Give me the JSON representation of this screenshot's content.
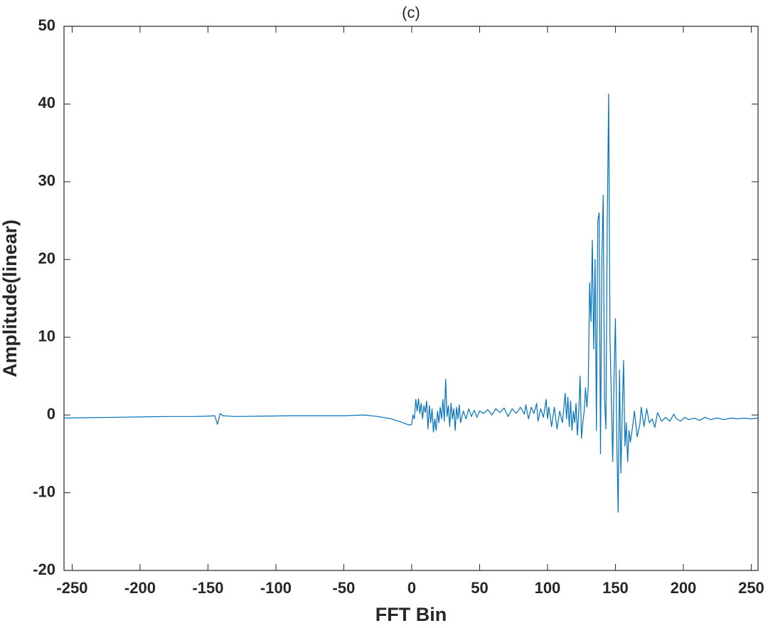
{
  "chart_data": {
    "type": "line",
    "title": "(c)",
    "x_label": "FFT Bin",
    "y_label": "Amplitude(linear)",
    "color": "#0072bd",
    "xlim": [
      -256,
      255
    ],
    "ylim": [
      -20,
      50
    ],
    "xticks": [
      -250,
      -200,
      -150,
      -100,
      -50,
      0,
      50,
      100,
      150,
      200,
      250
    ],
    "yticks": [
      -20,
      -10,
      0,
      10,
      20,
      30,
      40,
      50
    ],
    "x": [
      -256,
      -240,
      -220,
      -200,
      -180,
      -160,
      -150,
      -145,
      -143,
      -141,
      -139,
      -130,
      -110,
      -90,
      -70,
      -50,
      -35,
      -25,
      -15,
      -8,
      -2,
      0,
      1,
      2,
      3,
      4,
      5,
      6,
      7,
      8,
      9,
      10,
      11,
      12,
      13,
      14,
      15,
      16,
      17,
      18,
      19,
      20,
      21,
      22,
      23,
      24,
      25,
      26,
      27,
      28,
      29,
      30,
      31,
      32,
      33,
      34,
      35,
      36,
      38,
      40,
      42,
      44,
      46,
      48,
      50,
      53,
      56,
      59,
      62,
      65,
      68,
      71,
      74,
      77,
      80,
      83,
      84,
      86,
      88,
      90,
      92,
      93,
      95,
      97,
      99,
      100,
      101,
      103,
      105,
      107,
      109,
      111,
      113,
      114,
      115,
      116,
      117,
      118,
      119,
      120,
      121,
      122,
      123,
      124,
      125,
      126,
      127,
      128,
      129,
      130,
      131,
      132,
      133,
      134,
      135,
      136,
      137,
      138,
      139,
      140,
      141,
      142,
      143,
      144,
      145,
      146,
      147,
      148,
      149,
      150,
      151,
      152,
      153,
      154,
      155,
      156,
      157,
      158,
      159,
      160,
      161,
      163,
      164,
      166,
      168,
      169,
      171,
      173,
      175,
      177,
      179,
      181,
      184,
      187,
      190,
      193,
      195,
      198,
      201,
      204,
      208,
      212,
      216,
      220,
      225,
      230,
      235,
      240,
      245,
      250,
      255
    ],
    "values": [
      -0.4,
      -0.35,
      -0.3,
      -0.25,
      -0.2,
      -0.2,
      -0.15,
      -0.1,
      -1.2,
      0.2,
      -0.1,
      -0.2,
      -0.15,
      -0.1,
      -0.1,
      -0.1,
      0.0,
      -0.2,
      -0.5,
      -0.9,
      -1.3,
      -1.2,
      0.0,
      -0.5,
      2.0,
      0.5,
      2.1,
      0.2,
      1.5,
      -0.5,
      1.2,
      0.3,
      1.8,
      -1.8,
      1.2,
      -1.0,
      0.8,
      -2.2,
      -0.5,
      -2.0,
      0.5,
      -1.0,
      1.0,
      -0.5,
      2.0,
      -0.8,
      4.6,
      -0.2,
      1.2,
      -1.5,
      1.5,
      -0.5,
      0.8,
      -2.0,
      1.0,
      -0.5,
      1.3,
      -1.0,
      0.5,
      -0.5,
      0.8,
      -0.2,
      0.6,
      -0.3,
      0.5,
      0.2,
      0.7,
      0.0,
      0.8,
      0.3,
      0.9,
      -0.2,
      0.8,
      0.2,
      1.0,
      0.1,
      1.3,
      -0.5,
      1.0,
      0.2,
      1.5,
      -0.8,
      0.8,
      -0.3,
      2.0,
      -0.5,
      1.0,
      -1.5,
      1.0,
      -1.8,
      0.5,
      -1.0,
      2.8,
      -0.5,
      2.3,
      -1.5,
      1.8,
      -2.0,
      0.5,
      -1.0,
      1.5,
      -2.6,
      0.3,
      5.0,
      -3.0,
      -1.0,
      0.5,
      3.5,
      1.0,
      3.5,
      17.0,
      12.0,
      22.5,
      8.5,
      20.0,
      -2.0,
      25.0,
      26.0,
      -5.0,
      20.0,
      28.3,
      2.0,
      -1.8,
      25.0,
      41.3,
      10.0,
      2.0,
      -6.0,
      5.0,
      12.4,
      -3.0,
      -12.5,
      5.8,
      -7.5,
      0.0,
      7.0,
      -4.0,
      -1.0,
      -6.0,
      -2.0,
      -3.5,
      -1.0,
      0.5,
      -2.8,
      -1.2,
      1.0,
      -1.5,
      0.8,
      -1.0,
      -0.5,
      -1.6,
      0.3,
      -0.8,
      -0.3,
      -0.8,
      0.1,
      -0.5,
      -0.8,
      -0.3,
      -0.6,
      -0.4,
      -0.7,
      -0.3,
      -0.6,
      -0.4,
      -0.6,
      -0.4,
      -0.5,
      -0.4,
      -0.5,
      -0.4
    ]
  }
}
